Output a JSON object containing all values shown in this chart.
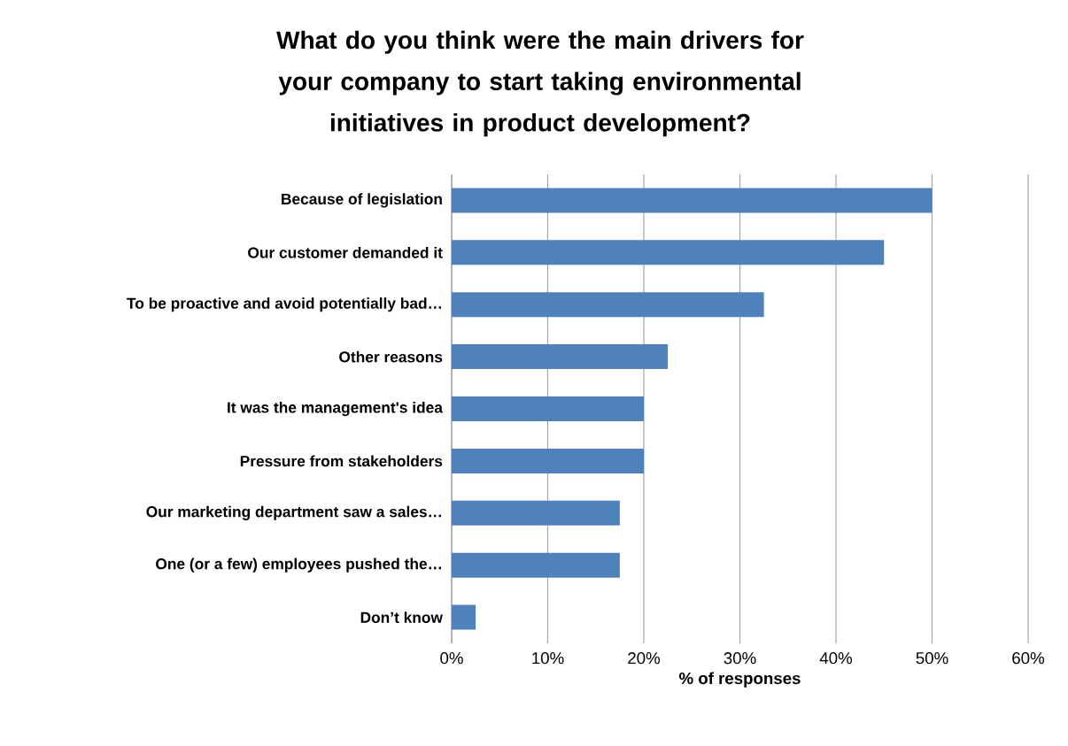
{
  "chart_data": {
    "type": "bar",
    "orientation": "horizontal",
    "title": "What do you think were the main drivers for your company to start taking environmental initiatives in product development?",
    "xlabel": "% of responses",
    "categories": [
      "Because of legislation",
      "Our customer demanded it",
      "To be proactive and avoid potentially bad…",
      "Other reasons",
      "It was the management's idea",
      "Pressure from stakeholders",
      "Our marketing department saw a sales…",
      "One (or a few) employees pushed the…",
      "Don’t know"
    ],
    "values": [
      50,
      45,
      32.5,
      22.5,
      20,
      20,
      17.5,
      17.5,
      2.5
    ],
    "color": "#4f81bd",
    "xlim": [
      0,
      60
    ],
    "xticks": [
      {
        "value": 0,
        "label": "0%"
      },
      {
        "value": 10,
        "label": "10%"
      },
      {
        "value": 20,
        "label": "20%"
      },
      {
        "value": 30,
        "label": "30%"
      },
      {
        "value": 40,
        "label": "40%"
      },
      {
        "value": 50,
        "label": "50%"
      },
      {
        "value": 60,
        "label": "60%"
      }
    ],
    "grid": "x"
  }
}
